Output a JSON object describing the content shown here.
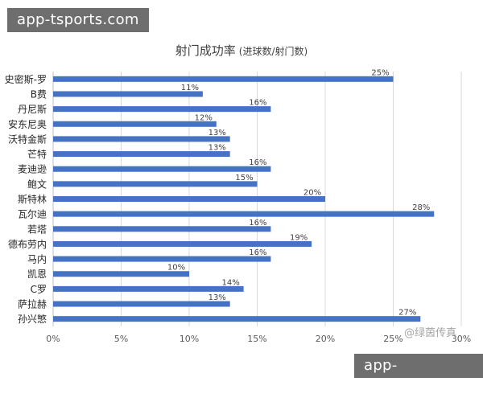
{
  "watermark": "app-tsports.com",
  "overlay_watermark": "@绿茵传真",
  "chart_data": {
    "type": "bar",
    "orientation": "horizontal",
    "title": "射门成功率",
    "subtitle": "(进球数/射门数)",
    "categories": [
      "史密斯-罗",
      "B费",
      "丹尼斯",
      "安东尼奥",
      "沃特金斯",
      "芒特",
      "麦迪逊",
      "鲍文",
      "斯特林",
      "瓦尔迪",
      "若塔",
      "德布劳内",
      "马内",
      "凯恩",
      "C罗",
      "萨拉赫",
      "孙兴慜"
    ],
    "values": [
      25,
      11,
      16,
      12,
      13,
      13,
      16,
      15,
      20,
      28,
      16,
      19,
      16,
      10,
      14,
      13,
      27
    ],
    "data_labels": [
      "25%",
      "11%",
      "16%",
      "12%",
      "13%",
      "13%",
      "16%",
      "15%",
      "20%",
      "28%",
      "16%",
      "19%",
      "16%",
      "10%",
      "14%",
      "13%",
      "27%"
    ],
    "x_ticks": [
      0,
      5,
      10,
      15,
      20,
      25,
      30
    ],
    "x_tick_labels": [
      "0%",
      "5%",
      "10%",
      "15%",
      "20%",
      "25%",
      "30%"
    ],
    "xlim": [
      0,
      30
    ],
    "grid": true,
    "legend": "none",
    "bar_color": "#4472c4"
  }
}
